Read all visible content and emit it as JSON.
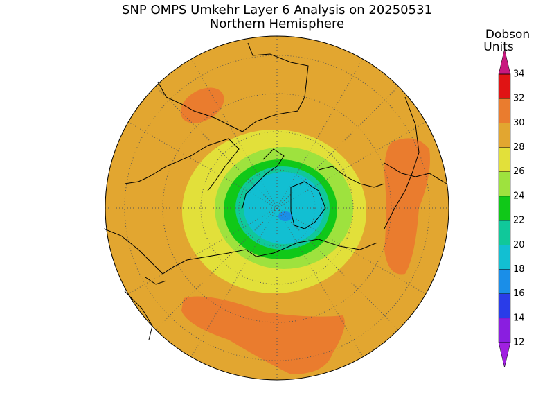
{
  "title": "SNP OMPS Umkehr Layer 6 Analysis on 20250531",
  "subtitle": "Northern Hemisphere",
  "colorbar": {
    "label_lines": [
      "Dobson",
      "Units"
    ],
    "ticks": [
      12,
      14,
      16,
      18,
      20,
      22,
      24,
      26,
      28,
      30,
      32,
      34
    ],
    "colors": [
      "#8a1ee0",
      "#2a3ce8",
      "#1a8ee8",
      "#12bfd2",
      "#10c89a",
      "#10c818",
      "#9ee23e",
      "#e2e03a",
      "#e2a630",
      "#ea7c2e",
      "#e01414"
    ],
    "under_color": "#a020e0",
    "over_color": "#c8187e"
  }
}
